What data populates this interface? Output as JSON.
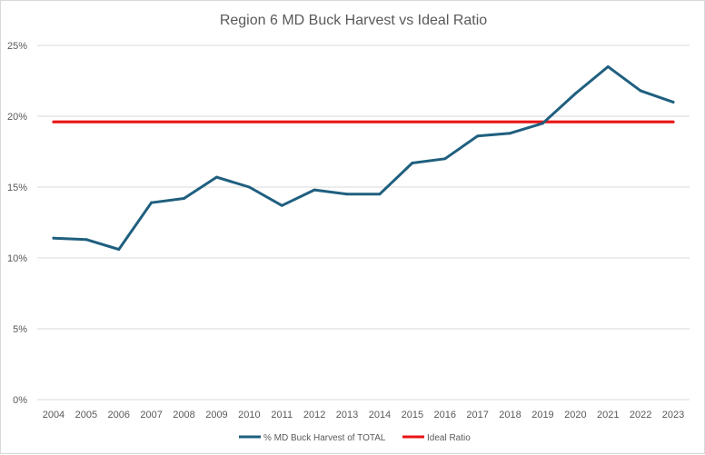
{
  "chart_data": {
    "type": "line",
    "title": "Region 6 MD Buck Harvest vs Ideal Ratio",
    "xlabel": "",
    "ylabel": "",
    "categories": [
      "2004",
      "2005",
      "2006",
      "2007",
      "2008",
      "2009",
      "2010",
      "2011",
      "2012",
      "2013",
      "2014",
      "2015",
      "2016",
      "2017",
      "2018",
      "2019",
      "2020",
      "2021",
      "2022",
      "2023"
    ],
    "y_ticks": [
      "0%",
      "5%",
      "10%",
      "15%",
      "20%",
      "25%"
    ],
    "ylim": [
      0,
      25
    ],
    "grid": true,
    "legend_position": "bottom",
    "series": [
      {
        "name": "% MD Buck Harvest of TOTAL",
        "color": "#1f5f7f",
        "values": [
          11.4,
          11.3,
          10.6,
          13.9,
          14.2,
          15.7,
          15.0,
          13.7,
          14.8,
          14.5,
          14.5,
          16.7,
          17.0,
          18.6,
          18.8,
          19.5,
          21.6,
          23.5,
          21.8,
          21.0
        ]
      },
      {
        "name": "Ideal Ratio",
        "color": "#e81416",
        "values": [
          19.6,
          19.6,
          19.6,
          19.6,
          19.6,
          19.6,
          19.6,
          19.6,
          19.6,
          19.6,
          19.6,
          19.6,
          19.6,
          19.6,
          19.6,
          19.6,
          19.6,
          19.6,
          19.6,
          19.6
        ]
      }
    ]
  }
}
